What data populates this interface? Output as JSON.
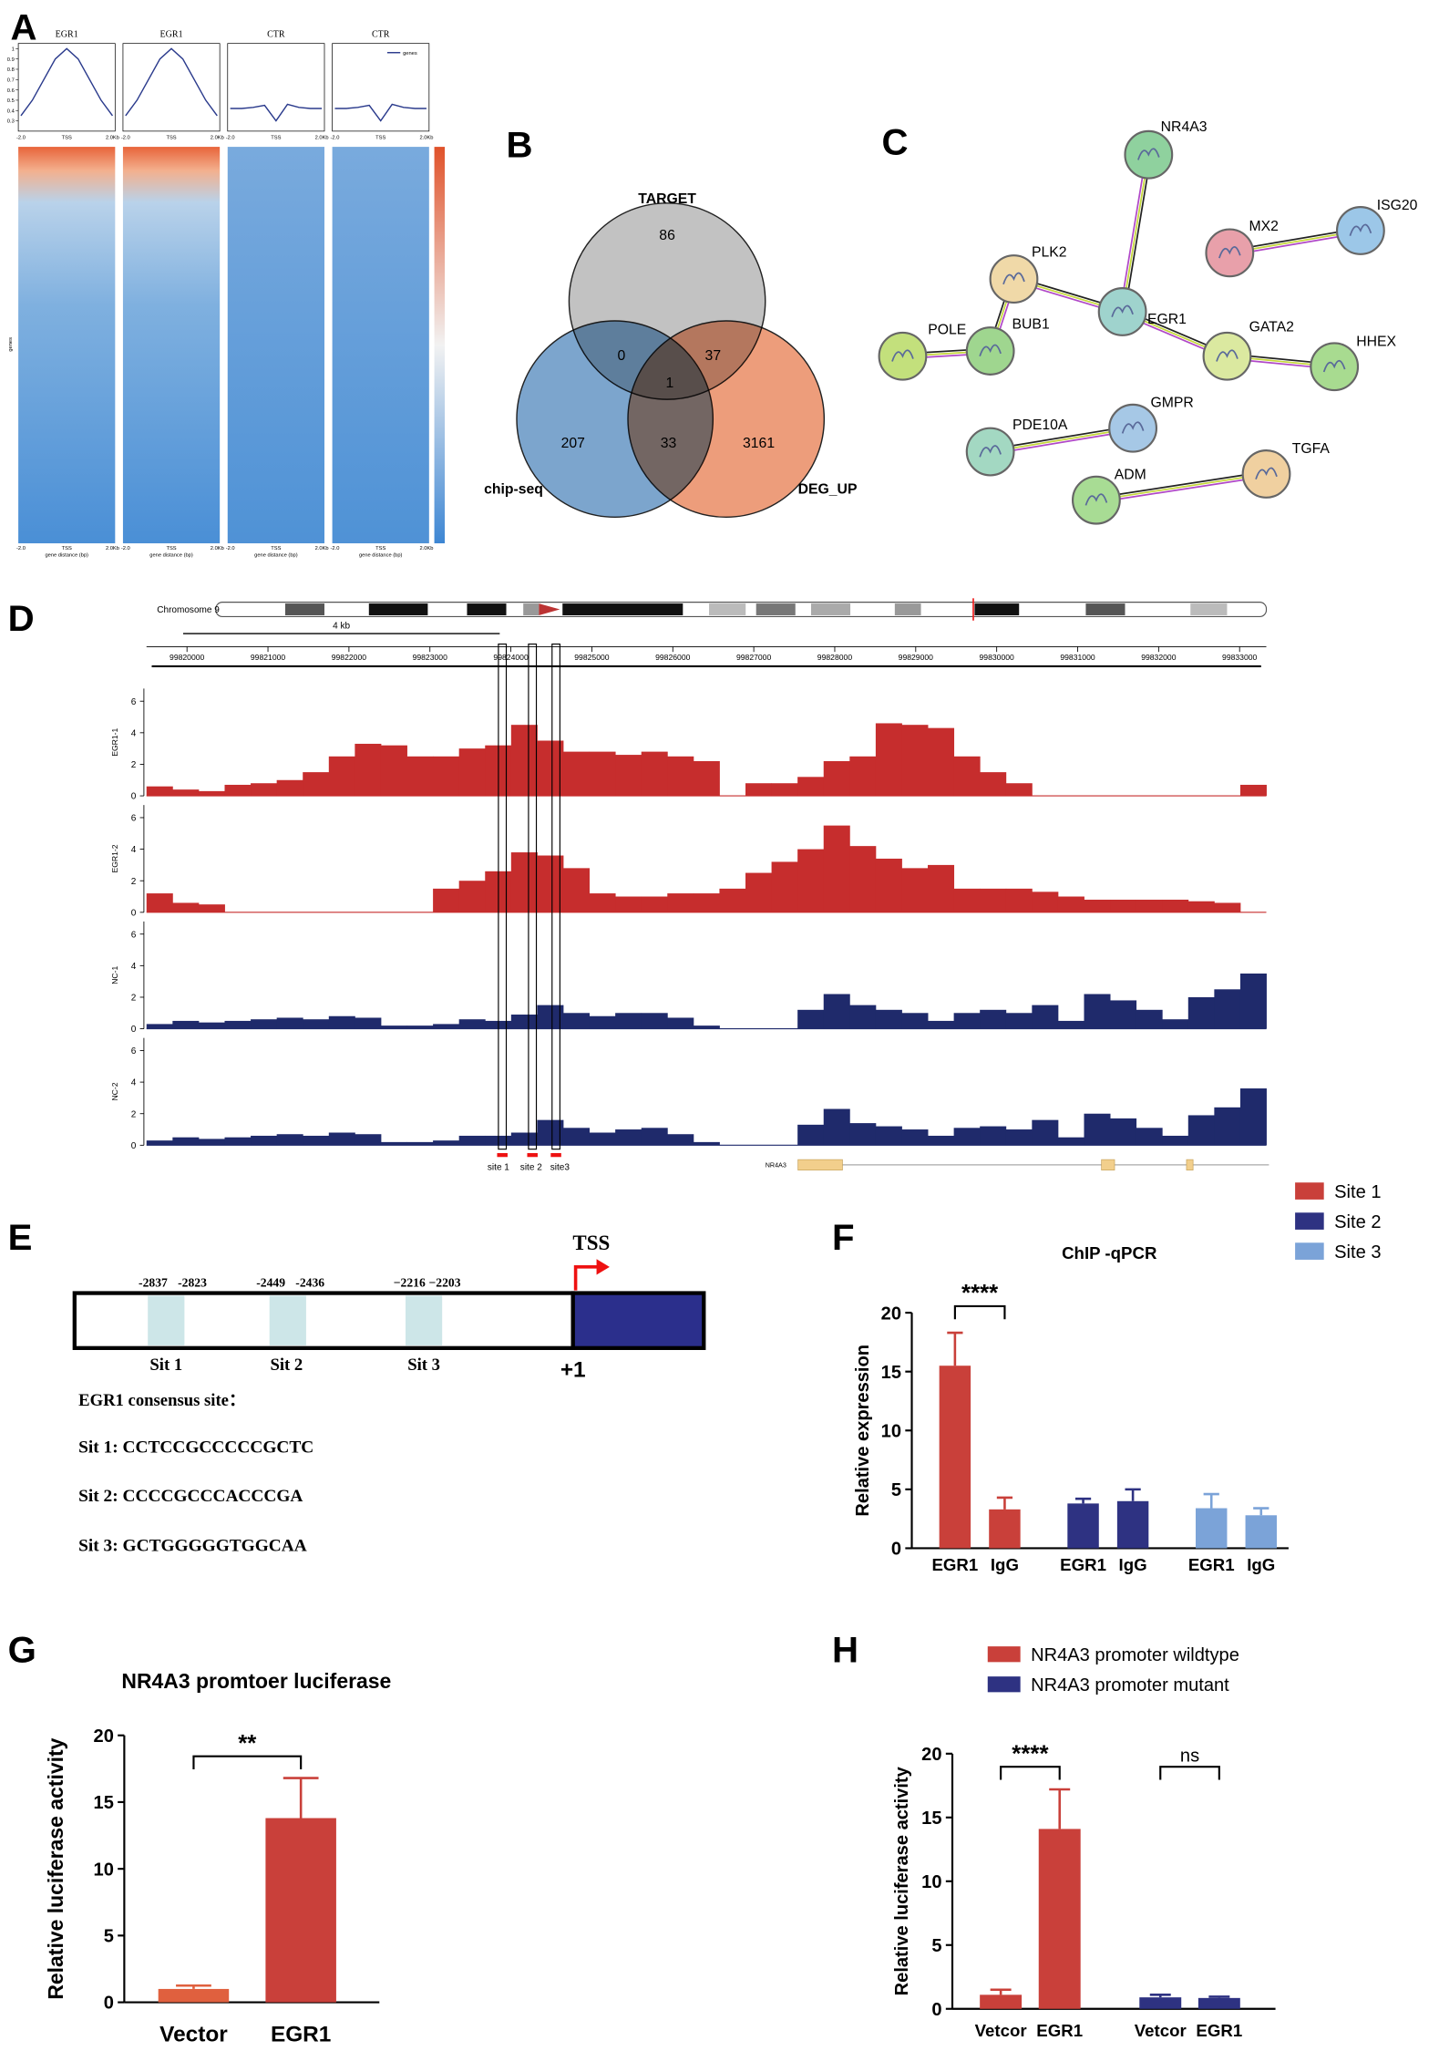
{
  "panel_labels": [
    "A",
    "B",
    "C",
    "D",
    "E",
    "F",
    "G",
    "H"
  ],
  "heatmap_panel": {
    "titles": [
      "EGR1",
      "EGR1",
      "CTR",
      "CTR"
    ],
    "legend": "genes",
    "xtick_labels": [
      "-2.0",
      "TSS",
      "2.0Kb"
    ],
    "xlabel": "gene distance (bp)",
    "ylabel": "genes",
    "profile_ylim": [
      0.2,
      1.05
    ],
    "profile_yticks": [
      0.3,
      0.4,
      0.5,
      0.6,
      0.7,
      0.8,
      0.9,
      1.0
    ],
    "profiles": [
      [
        0.35,
        0.5,
        0.7,
        0.9,
        1.0,
        0.9,
        0.7,
        0.5,
        0.35
      ],
      [
        0.35,
        0.5,
        0.7,
        0.9,
        1.0,
        0.9,
        0.7,
        0.5,
        0.35
      ],
      [
        0.42,
        0.42,
        0.43,
        0.45,
        0.3,
        0.46,
        0.43,
        0.42,
        0.42
      ],
      [
        0.42,
        0.42,
        0.43,
        0.45,
        0.3,
        0.46,
        0.43,
        0.42,
        0.42
      ]
    ]
  },
  "venn": {
    "sets": [
      "TARGET",
      "chip-seq",
      "DEG_UP"
    ],
    "counts": [
      86,
      0,
      37,
      1,
      207,
      33,
      3161
    ]
  },
  "network": {
    "nodes": [
      "NR4A3",
      "MX2",
      "ISG20",
      "PLK2",
      "EGR1",
      "BUB1",
      "POLE",
      "GATA2",
      "HHEX",
      "PDE10A",
      "GMPR",
      "TGFA",
      "ADM"
    ]
  },
  "genome_tracks": {
    "chromosome": "Chromosome 9",
    "scale_label": "4 kb",
    "xlim": [
      99819500,
      99833330
    ],
    "xticks": [
      99820000,
      99821000,
      99822000,
      99823000,
      99824000,
      99825000,
      99826000,
      99827000,
      99828000,
      99829000,
      99830000,
      99831000,
      99832000,
      99833000
    ],
    "ylim": [
      0,
      6.8
    ],
    "yticks": [
      0,
      2,
      4,
      6
    ],
    "tracks": [
      {
        "name": "EGR1-1",
        "color": "#c62d2d",
        "values": [
          0.6,
          0.4,
          0.3,
          0.7,
          0.8,
          1.0,
          1.5,
          2.5,
          3.3,
          3.2,
          2.5,
          2.5,
          3.0,
          3.2,
          4.5,
          3.5,
          2.8,
          2.8,
          2.6,
          2.8,
          2.5,
          2.2,
          0,
          0.8,
          0.8,
          1.2,
          2.2,
          2.5,
          4.6,
          4.5,
          4.3,
          2.5,
          1.5,
          0.8,
          0,
          0,
          0,
          0,
          0,
          0,
          0,
          0,
          0.7
        ]
      },
      {
        "name": "EGR1-2",
        "color": "#c62d2d",
        "values": [
          1.2,
          0.6,
          0.5,
          0,
          0,
          0,
          0,
          0,
          0,
          0,
          0,
          1.5,
          2.0,
          2.6,
          3.8,
          3.6,
          2.8,
          1.2,
          1.0,
          1.0,
          1.2,
          1.2,
          1.5,
          2.5,
          3.2,
          4.0,
          5.5,
          4.2,
          3.4,
          2.8,
          3.0,
          1.5,
          1.5,
          1.5,
          1.3,
          1.0,
          0.8,
          0.8,
          0.8,
          0.8,
          0.7,
          0.6,
          0
        ]
      },
      {
        "name": "NC-1",
        "color": "#1f2a6b",
        "values": [
          0.3,
          0.5,
          0.4,
          0.5,
          0.6,
          0.7,
          0.6,
          0.8,
          0.7,
          0.2,
          0.2,
          0.3,
          0.6,
          0.5,
          0.9,
          1.5,
          1.0,
          0.8,
          1.0,
          1.0,
          0.7,
          0.2,
          0,
          0,
          0,
          1.2,
          2.2,
          1.5,
          1.2,
          1.0,
          0.5,
          1.0,
          1.2,
          1.0,
          1.5,
          0.5,
          2.2,
          1.8,
          1.2,
          0.6,
          2.0,
          2.5,
          3.5
        ]
      },
      {
        "name": "NC-2",
        "color": "#1f2a6b",
        "values": [
          0.3,
          0.5,
          0.4,
          0.5,
          0.6,
          0.7,
          0.6,
          0.8,
          0.7,
          0.2,
          0.2,
          0.3,
          0.6,
          0.6,
          0.8,
          1.6,
          1.1,
          0.8,
          1.0,
          1.1,
          0.7,
          0.2,
          0,
          0,
          0,
          1.3,
          2.3,
          1.4,
          1.2,
          1.0,
          0.6,
          1.1,
          1.2,
          1.0,
          1.6,
          0.5,
          2.0,
          1.7,
          1.1,
          0.6,
          1.9,
          2.4,
          3.6
        ]
      }
    ],
    "sites": [
      "site 1",
      "site 2",
      "site3"
    ],
    "gene": "NR4A3"
  },
  "promoter": {
    "tss": "TSS",
    "plus_one": "+1",
    "positions": [
      "-2837",
      "-2823",
      "-2449",
      "-2436",
      "−2216",
      "−2203"
    ],
    "sites": [
      "Sit 1",
      "Sit 2",
      "Sit 3"
    ],
    "consensus_title": "EGR1 consensus site：",
    "sequences": [
      "Sit 1:  CCTCCGCCCCCGCTC",
      "Sit 2: CCCCGCCCACCCGA",
      "Sit 3: GCTGGGGGTGGCAA"
    ]
  },
  "chart_data": [
    {
      "type": "bar",
      "title": "ChIP -qPCR",
      "ylabel": "Relative expression",
      "categories": [
        "EGR1",
        "IgG",
        "EGR1",
        "IgG",
        "EGR1",
        "IgG"
      ],
      "series": [
        {
          "name": "Site 1",
          "color": "#c9403a",
          "values": [
            15.5,
            3.3,
            null,
            null,
            null,
            null
          ],
          "errors": [
            2.8,
            1.0,
            null,
            null,
            null,
            null
          ]
        },
        {
          "name": "Site 2",
          "color": "#2e3282",
          "values": [
            null,
            null,
            3.8,
            4.0,
            null,
            null
          ],
          "errors": [
            null,
            null,
            0.4,
            1.0,
            null,
            null
          ]
        },
        {
          "name": "Site 3",
          "color": "#7ba3d8",
          "values": [
            null,
            null,
            null,
            null,
            3.4,
            2.8
          ],
          "errors": [
            null,
            null,
            null,
            null,
            1.2,
            0.6
          ]
        }
      ],
      "ylim": [
        0,
        20
      ],
      "yticks": [
        0,
        5,
        10,
        15,
        20
      ],
      "annotations": [
        "****"
      ],
      "legend": "right"
    },
    {
      "type": "bar",
      "title": "NR4A3 promtoer luciferase",
      "ylabel": "Relative luciferase activity",
      "categories": [
        "Vector",
        "EGR1"
      ],
      "series": [
        {
          "colors": [
            "#e0603e",
            "#c9403a"
          ],
          "values": [
            1.0,
            13.8
          ],
          "errors": [
            0.25,
            3.0
          ]
        }
      ],
      "ylim": [
        0,
        20
      ],
      "yticks": [
        0,
        5,
        10,
        15,
        20
      ],
      "annotations": [
        "**"
      ]
    },
    {
      "type": "bar",
      "ylabel": "Relative luciferase activity",
      "categories": [
        "Vetcor",
        "EGR1",
        "Vetcor",
        "EGR1"
      ],
      "series": [
        {
          "name": "NR4A3 promoter wildtype",
          "color": "#c9403a",
          "values": [
            1.1,
            14.1,
            null,
            null
          ],
          "errors": [
            0.4,
            3.1,
            null,
            null
          ]
        },
        {
          "name": "NR4A3 promoter mutant",
          "color": "#2e3282",
          "values": [
            null,
            null,
            0.9,
            0.85
          ],
          "errors": [
            null,
            null,
            0.2,
            0.1
          ]
        }
      ],
      "ylim": [
        0,
        20
      ],
      "yticks": [
        0,
        5,
        10,
        15,
        20
      ],
      "annotations": [
        "****",
        "ns"
      ],
      "legend": "top"
    }
  ]
}
